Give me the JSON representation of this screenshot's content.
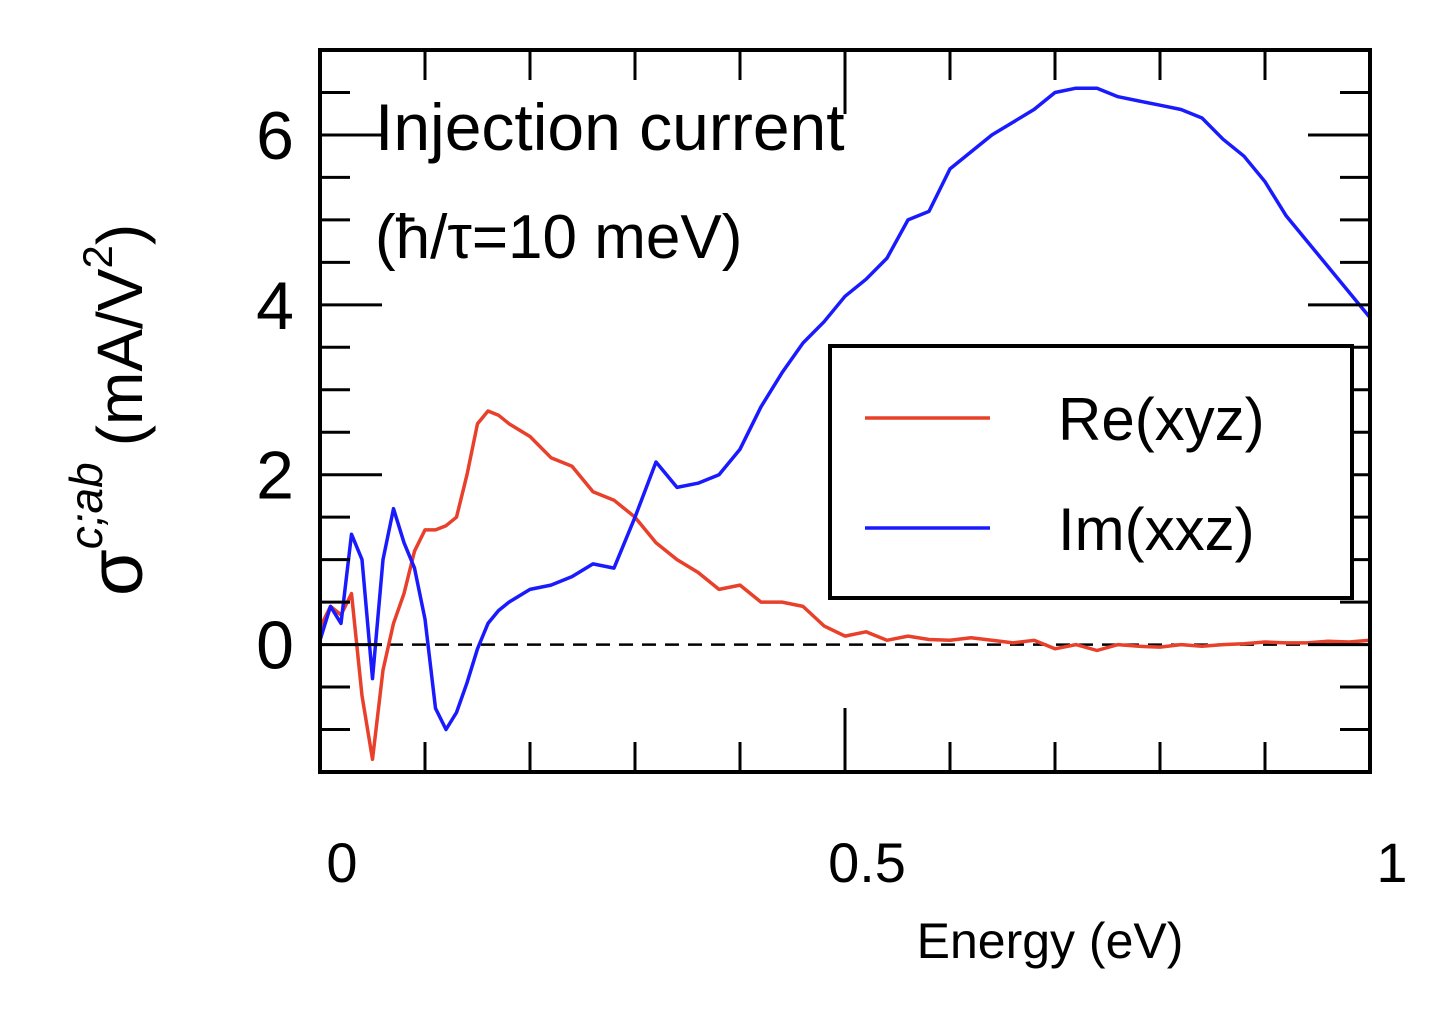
{
  "chart_data": {
    "type": "line",
    "title": "Injection current",
    "subtitle": "(ħ/τ=10 meV)",
    "xlabel": "Energy (eV)",
    "ylabel": {
      "symbol": "σ",
      "superscript": "c;ab",
      "unit": "(mA/V",
      "unit_superscript": "2",
      "close": ")"
    },
    "x": [
      0,
      0.01,
      0.02,
      0.03,
      0.04,
      0.05,
      0.06,
      0.07,
      0.08,
      0.09,
      0.1,
      0.11,
      0.12,
      0.13,
      0.14,
      0.15,
      0.16,
      0.17,
      0.18,
      0.2,
      0.22,
      0.24,
      0.26,
      0.28,
      0.3,
      0.32,
      0.34,
      0.36,
      0.38,
      0.4,
      0.42,
      0.44,
      0.46,
      0.48,
      0.5,
      0.52,
      0.54,
      0.56,
      0.58,
      0.6,
      0.62,
      0.64,
      0.66,
      0.68,
      0.7,
      0.72,
      0.74,
      0.76,
      0.78,
      0.8,
      0.82,
      0.84,
      0.86,
      0.88,
      0.9,
      0.92,
      0.94,
      0.96,
      0.98,
      1
    ],
    "series": [
      {
        "name": "Re(xyz)",
        "color": "#e8402a",
        "values": [
          0.2,
          0.45,
          0.35,
          0.6,
          -0.6,
          -1.35,
          -0.3,
          0.25,
          0.6,
          1.1,
          1.35,
          1.35,
          1.4,
          1.5,
          2.0,
          2.6,
          2.75,
          2.7,
          2.6,
          2.45,
          2.2,
          2.1,
          1.8,
          1.7,
          1.5,
          1.2,
          1.0,
          0.85,
          0.65,
          0.7,
          0.5,
          0.5,
          0.45,
          0.22,
          0.1,
          0.15,
          0.05,
          0.1,
          0.06,
          0.05,
          0.08,
          0.05,
          0.02,
          0.05,
          -0.05,
          0,
          -0.07,
          0,
          -0.02,
          -0.03,
          0,
          -0.02,
          0,
          0.01,
          0.03,
          0.02,
          0.02,
          0.04,
          0.03,
          0.05
        ]
      },
      {
        "name": "Im(xxz)",
        "color": "#1a1aff",
        "values": [
          0.05,
          0.45,
          0.25,
          1.3,
          1.0,
          -0.4,
          1.0,
          1.6,
          1.2,
          0.9,
          0.3,
          -0.75,
          -1.0,
          -0.8,
          -0.45,
          -0.05,
          0.25,
          0.4,
          0.5,
          0.65,
          0.7,
          0.8,
          0.95,
          0.9,
          1.5,
          2.15,
          1.85,
          1.9,
          2.0,
          2.3,
          2.8,
          3.2,
          3.55,
          3.8,
          4.1,
          4.3,
          4.55,
          5.0,
          5.1,
          5.6,
          5.8,
          6.0,
          6.15,
          6.3,
          6.5,
          6.55,
          6.55,
          6.45,
          6.4,
          6.35,
          6.3,
          6.2,
          5.95,
          5.75,
          5.45,
          5.05,
          4.75,
          4.45,
          4.15,
          3.85
        ]
      }
    ],
    "xlim": [
      0,
      1
    ],
    "xticks": [
      0,
      0.5,
      1
    ],
    "xticks_minor": [
      0.1,
      0.2,
      0.3,
      0.4,
      0.6,
      0.7,
      0.8,
      0.9
    ],
    "ylim": [
      -1.5,
      7
    ],
    "yticks": [
      0,
      2,
      4,
      6
    ],
    "yticks_minor": [
      -1,
      -0.5,
      0.5,
      1,
      1.5,
      2.5,
      3,
      3.5,
      4.5,
      5,
      5.5,
      6.5
    ],
    "zero_line": true,
    "legend": "right"
  }
}
